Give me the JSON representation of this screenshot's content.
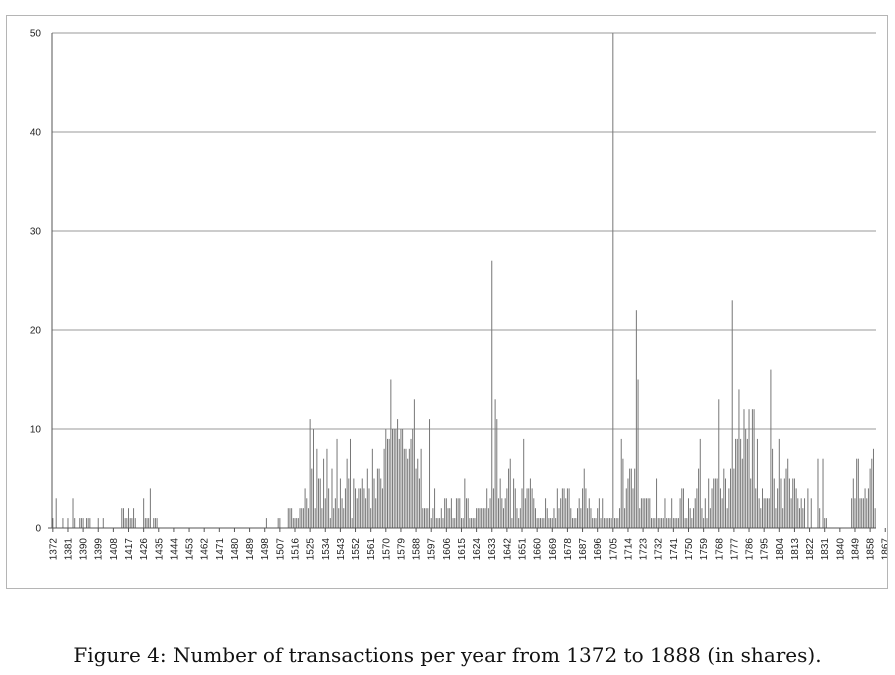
{
  "caption": "Figure 4: Number of transactions per year from 1372 to 1888 (in shares).",
  "chart_data": {
    "type": "bar",
    "title": "",
    "xlabel": "",
    "ylabel": "",
    "x_start": 1372,
    "x_end": 1888,
    "tick_years": [
      1372,
      1381,
      1390,
      1399,
      1408,
      1417,
      1426,
      1435,
      1444,
      1453,
      1462,
      1471,
      1480,
      1489,
      1498,
      1507,
      1516,
      1525,
      1534,
      1543,
      1552,
      1561,
      1570,
      1579,
      1588,
      1597,
      1606,
      1615,
      1624,
      1633,
      1642,
      1651,
      1660,
      1669,
      1678,
      1687,
      1696,
      1705,
      1714,
      1723,
      1732,
      1741,
      1750,
      1759,
      1768,
      1777,
      1786,
      1795,
      1804,
      1813,
      1822,
      1831,
      1840,
      1849,
      1858,
      1867
    ],
    "ylim": [
      0,
      50
    ],
    "yticks": [
      0,
      10,
      20,
      30,
      40,
      50
    ],
    "grid": true,
    "legend": "none",
    "bar_color": "#777777",
    "values": [
      1,
      0,
      3,
      0,
      0,
      0,
      1,
      0,
      0,
      1,
      0,
      0,
      3,
      1,
      0,
      0,
      1,
      1,
      1,
      0,
      1,
      1,
      1,
      0,
      0,
      0,
      0,
      1,
      0,
      0,
      1,
      0,
      0,
      0,
      0,
      0,
      0,
      0,
      0,
      0,
      0,
      2,
      2,
      1,
      1,
      2,
      1,
      1,
      2,
      1,
      0,
      0,
      0,
      0,
      3,
      1,
      1,
      1,
      4,
      0,
      1,
      1,
      1,
      0,
      0,
      0,
      0,
      0,
      0,
      0,
      0,
      0,
      0,
      0,
      0,
      0,
      0,
      0,
      0,
      0,
      0,
      0,
      0,
      0,
      0,
      0,
      0,
      0,
      0,
      0,
      0,
      0,
      0,
      0,
      0,
      0,
      0,
      0,
      0,
      0,
      0,
      0,
      0,
      0,
      0,
      0,
      0,
      0,
      0,
      0,
      0,
      0,
      0,
      0,
      0,
      0,
      0,
      0,
      0,
      0,
      0,
      0,
      0,
      0,
      0,
      0,
      0,
      1,
      0,
      0,
      0,
      0,
      0,
      0,
      1,
      1,
      0,
      0,
      0,
      0,
      2,
      2,
      2,
      1,
      1,
      1,
      1,
      2,
      2,
      2,
      4,
      3,
      2,
      11,
      6,
      10,
      2,
      8,
      5,
      5,
      2,
      7,
      3,
      8,
      4,
      1,
      6,
      2,
      3,
      9,
      2,
      5,
      3,
      2,
      4,
      7,
      5,
      9,
      1,
      5,
      4,
      3,
      4,
      4,
      5,
      4,
      3,
      6,
      4,
      2,
      8,
      5,
      3,
      6,
      6,
      5,
      4,
      8,
      10,
      9,
      9,
      15,
      10,
      10,
      10,
      11,
      9,
      10,
      10,
      8,
      8,
      7,
      8,
      9,
      10,
      13,
      6,
      7,
      5,
      8,
      2,
      2,
      2,
      2,
      11,
      1,
      2,
      4,
      1,
      1,
      1,
      2,
      1,
      3,
      3,
      2,
      2,
      3,
      1,
      1,
      3,
      3,
      3,
      1,
      1,
      5,
      3,
      3,
      1,
      1,
      1,
      1,
      2,
      2,
      2,
      2,
      2,
      2,
      4,
      2,
      3,
      27,
      4,
      13,
      11,
      3,
      5,
      3,
      2,
      3,
      4,
      6,
      7,
      1,
      5,
      4,
      2,
      1,
      2,
      4,
      9,
      3,
      4,
      4,
      5,
      4,
      3,
      2,
      1,
      1,
      1,
      1,
      1,
      3,
      2,
      1,
      1,
      1,
      2,
      1,
      4,
      2,
      3,
      4,
      4,
      3,
      4,
      4,
      2,
      1,
      1,
      1,
      2,
      3,
      2,
      4,
      6,
      4,
      2,
      3,
      2,
      1,
      1,
      1,
      2,
      3,
      1,
      3,
      1,
      1,
      1,
      1,
      1,
      50,
      1,
      1,
      1,
      2,
      9,
      7,
      2,
      4,
      5,
      6,
      6,
      4,
      6,
      22,
      15,
      2,
      3,
      3,
      3,
      3,
      3,
      3,
      1,
      1,
      1,
      5,
      1,
      1,
      1,
      1,
      3,
      1,
      1,
      1,
      3,
      1,
      1,
      1,
      1,
      3,
      4,
      4,
      1,
      1,
      3,
      2,
      1,
      2,
      3,
      4,
      6,
      9,
      2,
      1,
      3,
      1,
      5,
      2,
      4,
      5,
      5,
      5,
      13,
      4,
      3,
      6,
      5,
      2,
      4,
      6,
      23,
      6,
      9,
      9,
      14,
      9,
      7,
      12,
      10,
      9,
      12,
      5,
      12,
      12,
      4,
      9,
      3,
      2,
      4,
      3,
      3,
      3,
      3,
      16,
      8,
      5,
      2,
      4,
      9,
      5,
      2,
      5,
      6,
      7,
      5,
      3,
      5,
      5,
      4,
      3,
      2,
      3,
      2,
      3,
      0,
      4,
      0,
      3,
      0,
      0,
      0,
      7,
      2,
      0,
      7,
      1,
      1,
      0,
      0,
      0,
      0,
      0,
      0,
      0,
      0,
      0,
      0,
      0,
      0,
      0,
      0,
      3,
      5,
      3,
      7,
      7,
      3,
      3,
      3,
      4,
      3,
      4,
      6,
      7,
      8,
      2
    ]
  }
}
